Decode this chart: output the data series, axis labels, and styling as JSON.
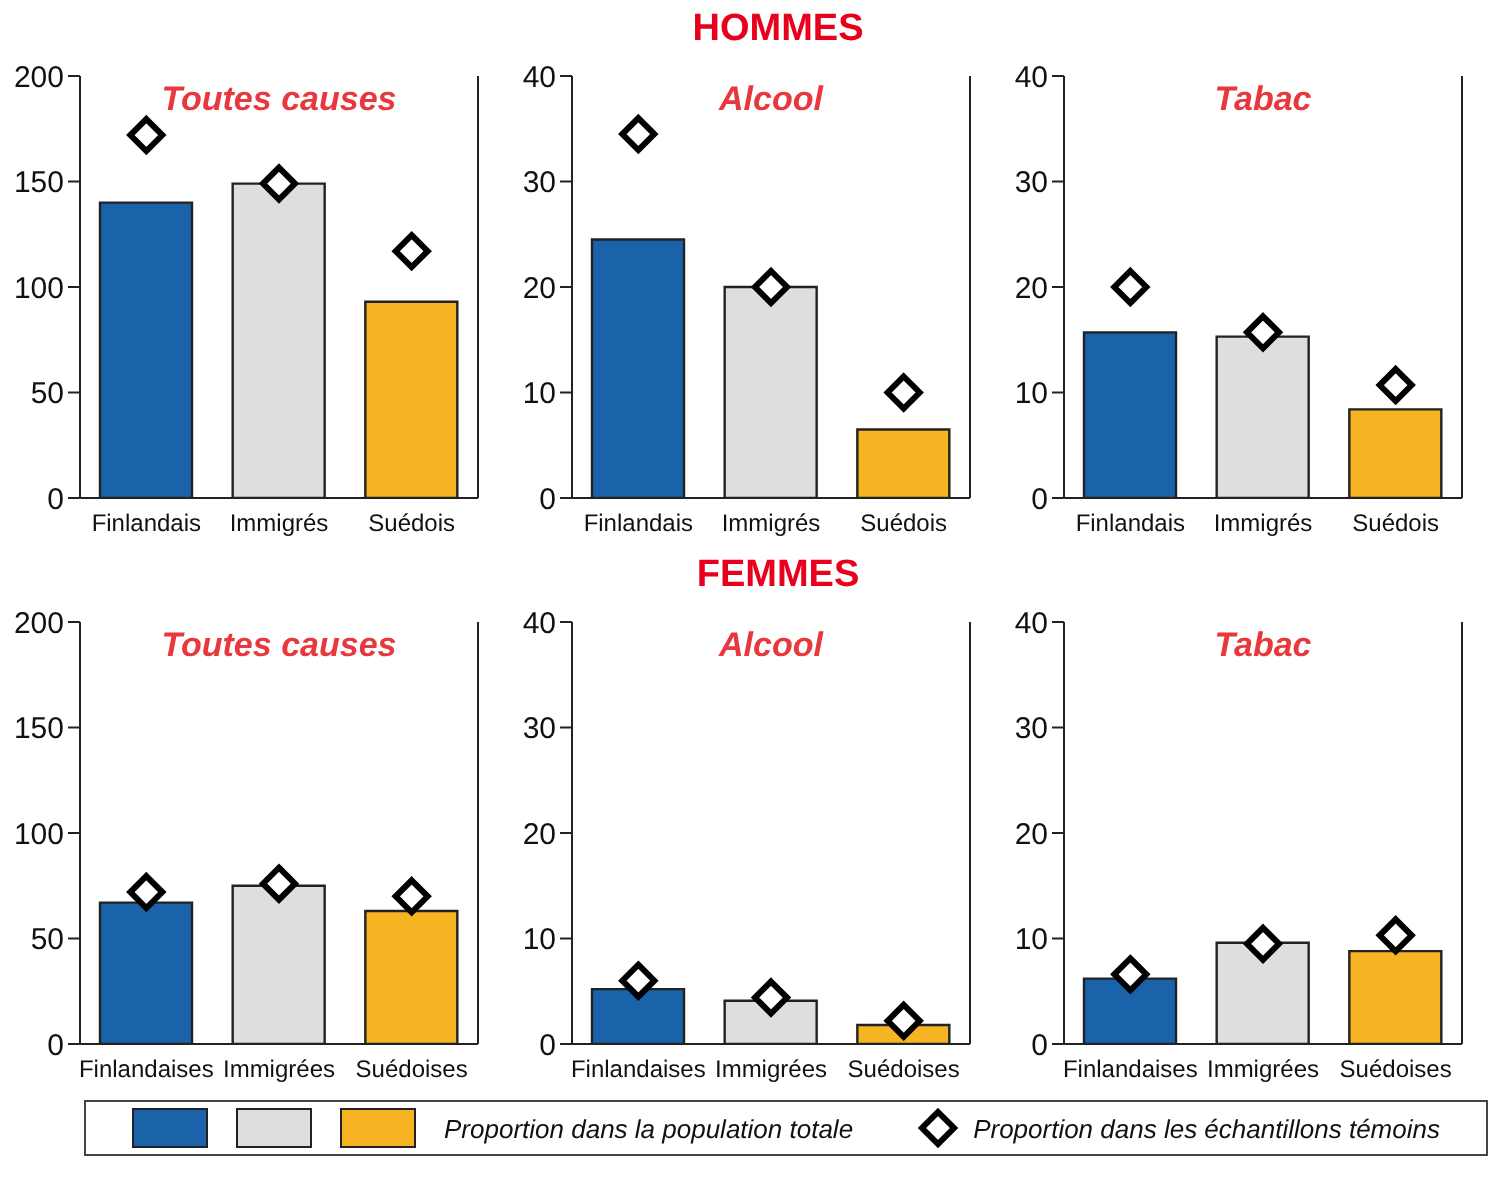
{
  "chart_data": [
    {
      "type": "bar",
      "title": "Toutes causes",
      "legend": "bottom",
      "categories": [
        "Finlandais",
        "Immigrés",
        "Suédois"
      ],
      "ylim": [
        0,
        200
      ],
      "yticks": [
        0,
        50,
        100,
        150,
        200
      ],
      "series": [
        {
          "type": "bar",
          "name": "Proportion dans la population totale",
          "colors": [
            "#1a63ab",
            "#dedede",
            "#f7b422"
          ],
          "values": [
            140,
            149,
            93
          ]
        },
        {
          "type": "scatter",
          "name": "Proportion dans les échantillons témoins",
          "color": "#000000",
          "marker": "diamond",
          "values": [
            172,
            149,
            117
          ]
        }
      ]
    },
    {
      "type": "bar",
      "title": "Alcool",
      "annotations": [
        "HOMMES"
      ],
      "categories": [
        "Finlandais",
        "Immigrés",
        "Suédois"
      ],
      "ylim": [
        0,
        40
      ],
      "yticks": [
        0,
        10,
        20,
        30,
        40
      ],
      "series": [
        {
          "type": "bar",
          "colors": [
            "#1a63ab",
            "#dedede",
            "#f7b422"
          ],
          "values": [
            24.5,
            20,
            6.5
          ]
        },
        {
          "type": "scatter",
          "color": "#000000",
          "marker": "diamond",
          "values": [
            34.5,
            20,
            10
          ]
        }
      ]
    },
    {
      "type": "bar",
      "title": "Tabac",
      "categories": [
        "Finlandais",
        "Immigrés",
        "Suédois"
      ],
      "ylim": [
        0,
        40
      ],
      "yticks": [
        0,
        10,
        20,
        30,
        40
      ],
      "series": [
        {
          "type": "bar",
          "colors": [
            "#1a63ab",
            "#dedede",
            "#f7b422"
          ],
          "values": [
            15.7,
            15.3,
            8.4
          ]
        },
        {
          "type": "scatter",
          "color": "#000000",
          "marker": "diamond",
          "values": [
            20,
            15.7,
            10.7
          ]
        }
      ]
    },
    {
      "type": "bar",
      "title": "Toutes causes",
      "categories": [
        "Finlandaises",
        "Immigrées",
        "Suédoises"
      ],
      "ylim": [
        0,
        200
      ],
      "yticks": [
        0,
        50,
        100,
        150,
        200
      ],
      "series": [
        {
          "type": "bar",
          "colors": [
            "#1a63ab",
            "#dedede",
            "#f7b422"
          ],
          "values": [
            67,
            75,
            63
          ]
        },
        {
          "type": "scatter",
          "color": "#000000",
          "marker": "diamond",
          "values": [
            72,
            76,
            70
          ]
        }
      ]
    },
    {
      "type": "bar",
      "title": "Alcool",
      "annotations": [
        "FEMMES"
      ],
      "categories": [
        "Finlandaises",
        "Immigrées",
        "Suédoises"
      ],
      "ylim": [
        0,
        40
      ],
      "yticks": [
        0,
        10,
        20,
        30,
        40
      ],
      "series": [
        {
          "type": "bar",
          "colors": [
            "#1a63ab",
            "#dedede",
            "#f7b422"
          ],
          "values": [
            5.2,
            4.1,
            1.8
          ]
        },
        {
          "type": "scatter",
          "color": "#000000",
          "marker": "diamond",
          "values": [
            6,
            4.4,
            2.2
          ]
        }
      ]
    },
    {
      "type": "bar",
      "title": "Tabac",
      "categories": [
        "Finlandaises",
        "Immigrées",
        "Suédoises"
      ],
      "ylim": [
        0,
        40
      ],
      "yticks": [
        0,
        10,
        20,
        30,
        40
      ],
      "series": [
        {
          "type": "bar",
          "colors": [
            "#1a63ab",
            "#dedede",
            "#f7b422"
          ],
          "values": [
            6.2,
            9.6,
            8.8
          ]
        },
        {
          "type": "scatter",
          "color": "#000000",
          "marker": "diamond",
          "values": [
            6.6,
            9.5,
            10.3
          ]
        }
      ]
    }
  ]
}
